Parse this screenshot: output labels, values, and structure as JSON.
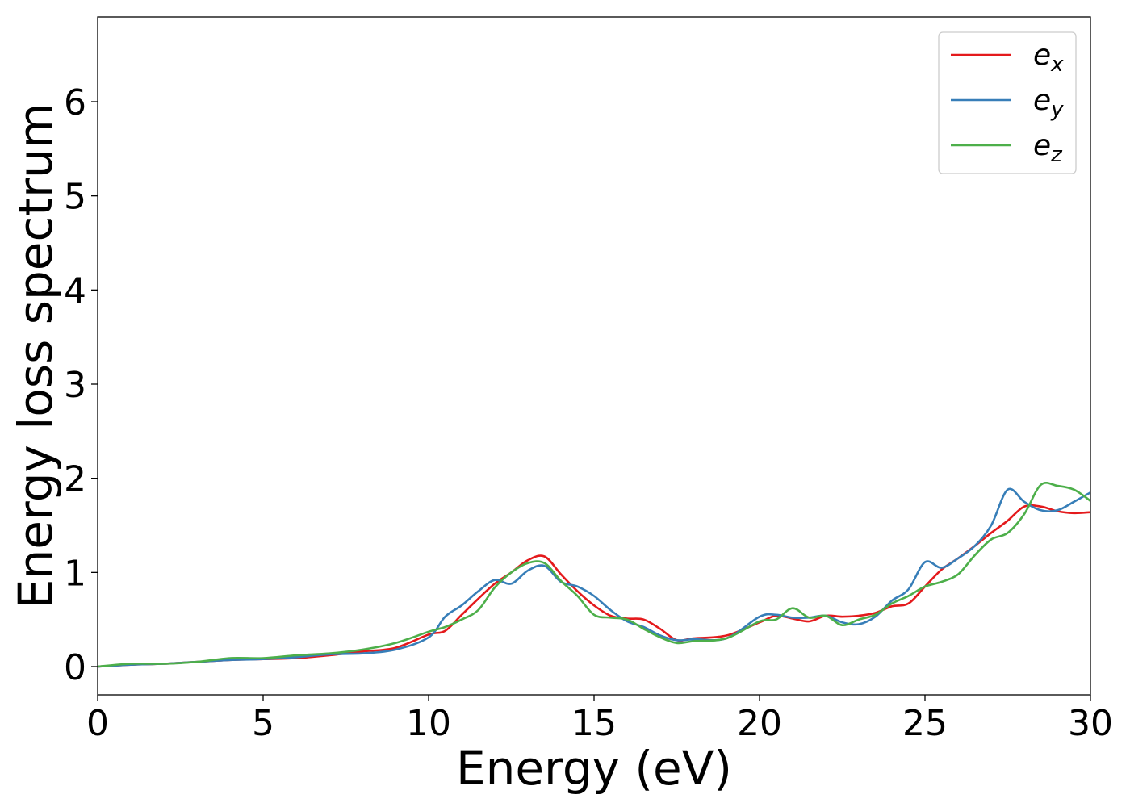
{
  "chart_data": {
    "type": "line",
    "xlabel": "Energy (eV)",
    "ylabel": "Energy loss spectrum",
    "xlim": [
      0,
      30
    ],
    "ylim": [
      -0.3,
      6.9
    ],
    "x_ticks": [
      "0",
      "5",
      "10",
      "15",
      "20",
      "25",
      "30"
    ],
    "y_ticks": [
      "0",
      "1",
      "2",
      "3",
      "4",
      "5",
      "6"
    ],
    "grid": false,
    "legend_position": "top-right",
    "series": [
      {
        "name": "e_x",
        "label_base": "e",
        "label_sub": "x",
        "color": "#e41a1c",
        "x": [
          0,
          1,
          2,
          3,
          4,
          5,
          6,
          7,
          8,
          9,
          10,
          10.5,
          11,
          11.5,
          12,
          12.5,
          13,
          13.5,
          14,
          14.5,
          15,
          15.5,
          16,
          16.5,
          17,
          17.5,
          18,
          19,
          20,
          20.5,
          21,
          21.5,
          22,
          22.5,
          23,
          23.5,
          24,
          24.5,
          25,
          25.5,
          26,
          26.5,
          27,
          27.5,
          28,
          28.5,
          29,
          29.5,
          30
        ],
        "values": [
          0,
          0.02,
          0.03,
          0.05,
          0.07,
          0.08,
          0.09,
          0.12,
          0.16,
          0.2,
          0.34,
          0.38,
          0.55,
          0.72,
          0.88,
          1.0,
          1.13,
          1.17,
          0.98,
          0.8,
          0.65,
          0.54,
          0.51,
          0.5,
          0.4,
          0.28,
          0.3,
          0.33,
          0.47,
          0.54,
          0.51,
          0.48,
          0.54,
          0.53,
          0.54,
          0.57,
          0.64,
          0.67,
          0.85,
          1.03,
          1.15,
          1.28,
          1.42,
          1.55,
          1.7,
          1.7,
          1.65,
          1.63,
          1.64
        ]
      },
      {
        "name": "e_y",
        "label_base": "e",
        "label_sub": "y",
        "color": "#377eb8",
        "x": [
          0,
          1,
          2,
          3,
          4,
          5,
          6,
          7,
          8,
          9,
          10,
          10.5,
          11,
          11.5,
          12,
          12.5,
          13,
          13.5,
          14,
          14.5,
          15,
          15.5,
          16,
          16.5,
          17,
          17.5,
          18,
          19,
          20,
          20.5,
          21,
          21.5,
          22,
          22.5,
          23,
          23.5,
          24,
          24.5,
          25,
          25.5,
          26,
          26.5,
          27,
          27.5,
          28,
          28.5,
          29,
          29.5,
          30
        ],
        "values": [
          0,
          0.02,
          0.03,
          0.05,
          0.07,
          0.08,
          0.1,
          0.13,
          0.14,
          0.18,
          0.31,
          0.53,
          0.65,
          0.8,
          0.92,
          0.88,
          1.02,
          1.07,
          0.9,
          0.85,
          0.75,
          0.6,
          0.48,
          0.42,
          0.33,
          0.28,
          0.29,
          0.3,
          0.53,
          0.55,
          0.52,
          0.52,
          0.54,
          0.47,
          0.45,
          0.53,
          0.7,
          0.82,
          1.11,
          1.05,
          1.15,
          1.28,
          1.5,
          1.88,
          1.75,
          1.66,
          1.66,
          1.75,
          1.85
        ]
      },
      {
        "name": "e_z",
        "label_base": "e",
        "label_sub": "z",
        "color": "#4daf4a",
        "x": [
          0,
          1,
          2,
          3,
          4,
          5,
          6,
          7,
          8,
          9,
          10,
          10.5,
          11,
          11.5,
          12,
          12.5,
          13,
          13.5,
          14,
          14.5,
          15,
          15.5,
          16,
          16.5,
          17,
          17.5,
          18,
          19,
          20,
          20.5,
          21,
          21.5,
          22,
          22.5,
          23,
          23.5,
          24,
          24.5,
          25,
          25.5,
          26,
          26.5,
          27,
          27.5,
          28,
          28.5,
          29,
          29.5,
          30
        ],
        "values": [
          0,
          0.03,
          0.03,
          0.05,
          0.09,
          0.09,
          0.12,
          0.14,
          0.18,
          0.25,
          0.37,
          0.42,
          0.5,
          0.6,
          0.84,
          1.0,
          1.1,
          1.1,
          0.91,
          0.75,
          0.55,
          0.52,
          0.5,
          0.4,
          0.31,
          0.25,
          0.27,
          0.3,
          0.48,
          0.5,
          0.62,
          0.52,
          0.54,
          0.44,
          0.5,
          0.55,
          0.67,
          0.75,
          0.85,
          0.9,
          0.98,
          1.18,
          1.35,
          1.42,
          1.62,
          1.93,
          1.92,
          1.88,
          1.76
        ]
      }
    ]
  }
}
